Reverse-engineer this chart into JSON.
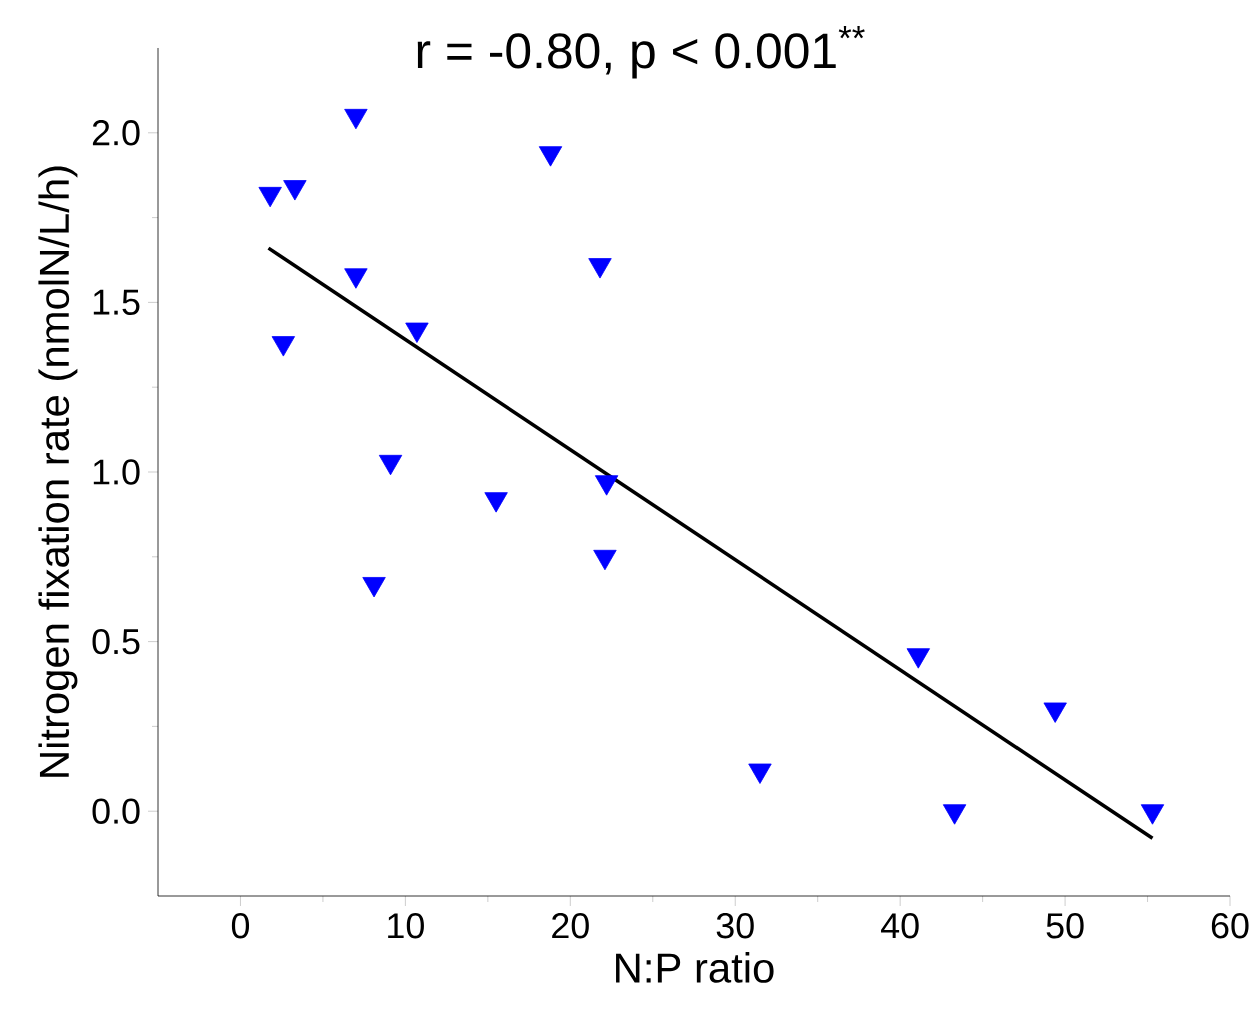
{
  "chart_data": {
    "type": "scatter",
    "xlabel": "N:P ratio",
    "ylabel": "Nitrogen fixation rate (nmolN/L/h)",
    "annotations": [
      "r = -0.80,  p < 0.001$^{**}$"
    ],
    "xlim": [
      -5,
      60
    ],
    "xticks": [
      0,
      10,
      20,
      30,
      40,
      50,
      60
    ],
    "ylim": [
      -0.25,
      2.25
    ],
    "yticks": [
      {
        "value": 0,
        "label": "0.0"
      },
      0.5,
      {
        "value": 1,
        "label": "1.0"
      },
      1.5,
      {
        "value": 2,
        "label": "2.0"
      }
    ],
    "grid": false,
    "marker": "triangle",
    "series": [
      {
        "color": "#0000ff",
        "x": [
          1.8,
          3.3,
          7.0,
          18.8,
          2.6,
          7.0,
          10.7,
          21.8,
          9.1,
          15.5,
          22.2,
          8.1,
          22.1,
          31.5,
          41.1,
          43.3,
          49.4,
          55.3
        ],
        "values": [
          1.82,
          1.84,
          2.05,
          1.94,
          1.38,
          1.58,
          1.42,
          1.61,
          1.03,
          0.92,
          0.97,
          0.67,
          0.75,
          0.12,
          0.46,
          0.0,
          0.3,
          0.0
        ]
      },
      {
        "type": "line",
        "color": "#000000",
        "marker": "none",
        "line_style": "solid",
        "x": [
          1.7,
          55.3
        ],
        "values": [
          1.66,
          -0.08
        ]
      }
    ]
  }
}
